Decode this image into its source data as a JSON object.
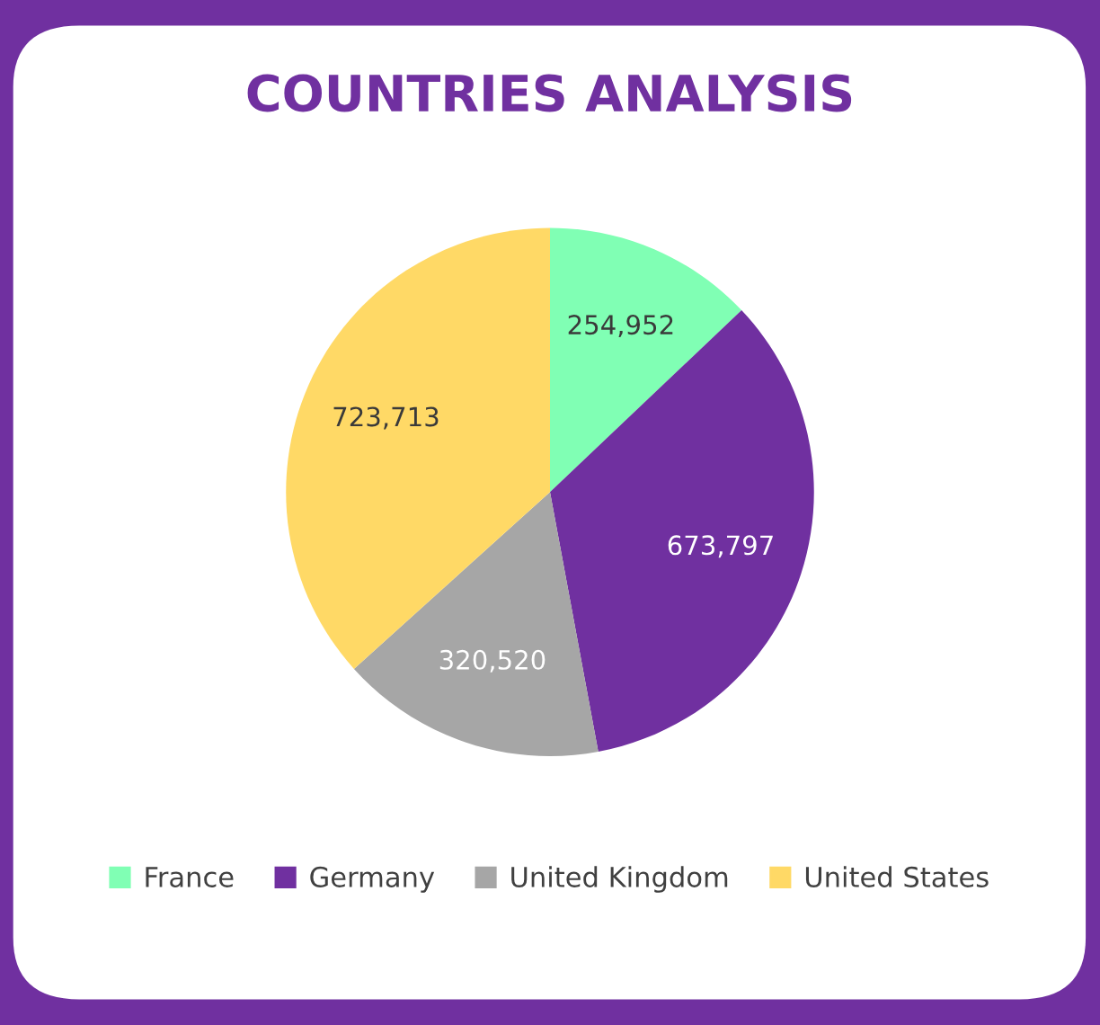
{
  "chart_data": {
    "type": "pie",
    "title": "COUNTRIES ANALYSIS",
    "categories": [
      "France",
      "Germany",
      "United Kingdom",
      "United States"
    ],
    "values": [
      254952,
      673797,
      320520,
      723713
    ],
    "colors": [
      "#80ffb4",
      "#7030a0",
      "#a6a6a6",
      "#ffd966"
    ],
    "value_labels": [
      "254,952",
      "673,797",
      "320,520",
      "723,713"
    ],
    "legend": "bottom"
  }
}
